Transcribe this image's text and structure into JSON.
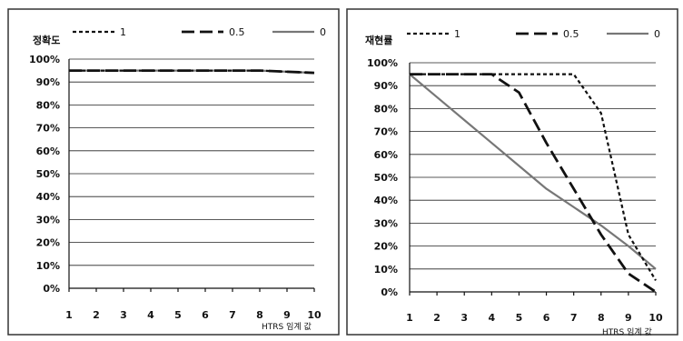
{
  "chart_data": [
    {
      "type": "line",
      "ylabel": "정확도",
      "xlabel": "HTRS 임계 값",
      "x": [
        1,
        2,
        3,
        4,
        5,
        6,
        7,
        8,
        9,
        10
      ],
      "ylim": [
        0,
        100
      ],
      "y_ticks": [
        "0%",
        "10%",
        "20%",
        "30%",
        "40%",
        "50%",
        "60%",
        "70%",
        "80%",
        "90%",
        "100%"
      ],
      "x_ticks": [
        "1",
        "2",
        "3",
        "4",
        "5",
        "6",
        "7",
        "8",
        "9",
        "10"
      ],
      "legend_position": "top",
      "grid": "horizontal",
      "series": [
        {
          "name": "1",
          "style": "short-dash",
          "color": "#111111",
          "values": [
            95,
            95,
            95,
            95,
            95,
            95,
            95,
            95,
            94.5,
            94
          ]
        },
        {
          "name": "0.5",
          "style": "long-dash",
          "color": "#111111",
          "values": [
            95,
            95,
            95,
            95,
            95,
            95,
            95,
            95,
            94.5,
            94
          ]
        },
        {
          "name": "0",
          "style": "solid",
          "color": "#777777",
          "values": [
            95,
            95,
            95,
            95,
            95,
            95,
            95,
            95,
            94.5,
            94
          ]
        }
      ]
    },
    {
      "type": "line",
      "ylabel": "재현률",
      "xlabel": "HTRS 임계 값",
      "x": [
        1,
        2,
        3,
        4,
        5,
        6,
        7,
        8,
        9,
        10
      ],
      "ylim": [
        0,
        100
      ],
      "y_ticks": [
        "0%",
        "10%",
        "20%",
        "30%",
        "40%",
        "50%",
        "60%",
        "70%",
        "80%",
        "90%",
        "100%"
      ],
      "x_ticks": [
        "1",
        "2",
        "3",
        "4",
        "5",
        "6",
        "7",
        "8",
        "9",
        "10"
      ],
      "legend_position": "top",
      "grid": "horizontal",
      "series": [
        {
          "name": "1",
          "style": "short-dash",
          "color": "#111111",
          "values": [
            95,
            95,
            95,
            95,
            95,
            95,
            95,
            78,
            25,
            5
          ]
        },
        {
          "name": "0.5",
          "style": "long-dash",
          "color": "#111111",
          "values": [
            95,
            95,
            95,
            95,
            87,
            65,
            45,
            25,
            8,
            0
          ]
        },
        {
          "name": "0",
          "style": "solid",
          "color": "#777777",
          "values": [
            95,
            85,
            75,
            65,
            55,
            45,
            37,
            29,
            20,
            10
          ]
        }
      ]
    }
  ]
}
